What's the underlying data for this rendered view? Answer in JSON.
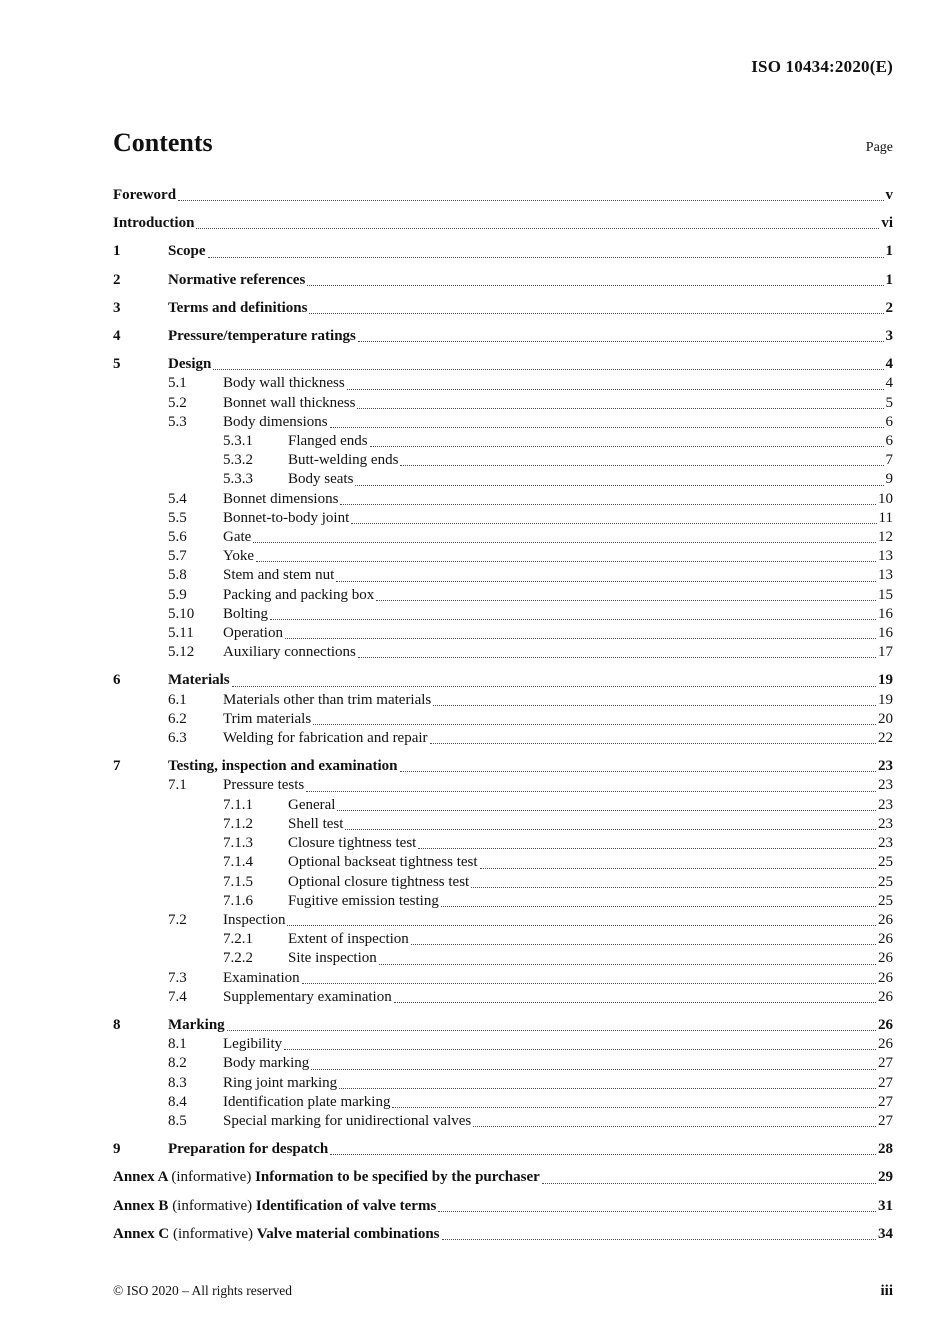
{
  "header": {
    "doc_code": "ISO 10434:2020(E)"
  },
  "title": "Contents",
  "page_column_label": "Page",
  "toc": {
    "entries": [
      {
        "level": 0,
        "bold": true,
        "label": "Foreword",
        "page": "v"
      },
      {
        "level": 0,
        "bold": true,
        "label": "Introduction",
        "page": "vi"
      },
      {
        "level": 1,
        "bold": true,
        "number": "1",
        "label": "Scope",
        "page": "1"
      },
      {
        "level": 1,
        "bold": true,
        "number": "2",
        "label": "Normative references",
        "page": "1"
      },
      {
        "level": 1,
        "bold": true,
        "number": "3",
        "label": "Terms and definitions",
        "page": "2"
      },
      {
        "level": 1,
        "bold": true,
        "number": "4",
        "label": "Pressure/temperature ratings",
        "page": "3"
      },
      {
        "level": 1,
        "bold": true,
        "number": "5",
        "label": "Design",
        "page": "4"
      },
      {
        "level": 2,
        "bold": false,
        "number": "5.1",
        "label": "Body wall thickness",
        "page": "4"
      },
      {
        "level": 2,
        "bold": false,
        "number": "5.2",
        "label": "Bonnet wall thickness",
        "page": "5"
      },
      {
        "level": 2,
        "bold": false,
        "number": "5.3",
        "label": "Body dimensions",
        "page": "6"
      },
      {
        "level": 3,
        "bold": false,
        "number": "5.3.1",
        "label": "Flanged ends",
        "page": "6"
      },
      {
        "level": 3,
        "bold": false,
        "number": "5.3.2",
        "label": "Butt-welding ends",
        "page": "7"
      },
      {
        "level": 3,
        "bold": false,
        "number": "5.3.3",
        "label": "Body seats",
        "page": "9"
      },
      {
        "level": 2,
        "bold": false,
        "number": "5.4",
        "label": "Bonnet dimensions",
        "page": "10"
      },
      {
        "level": 2,
        "bold": false,
        "number": "5.5",
        "label": "Bonnet-to-body joint",
        "page": "11"
      },
      {
        "level": 2,
        "bold": false,
        "number": "5.6",
        "label": "Gate",
        "page": "12"
      },
      {
        "level": 2,
        "bold": false,
        "number": "5.7",
        "label": "Yoke",
        "page": "13"
      },
      {
        "level": 2,
        "bold": false,
        "number": "5.8",
        "label": "Stem and stem nut",
        "page": "13"
      },
      {
        "level": 2,
        "bold": false,
        "number": "5.9",
        "label": "Packing and packing box",
        "page": "15"
      },
      {
        "level": 2,
        "bold": false,
        "number": "5.10",
        "label": "Bolting",
        "page": "16"
      },
      {
        "level": 2,
        "bold": false,
        "number": "5.11",
        "label": "Operation",
        "page": "16"
      },
      {
        "level": 2,
        "bold": false,
        "number": "5.12",
        "label": "Auxiliary connections",
        "page": "17"
      },
      {
        "level": 1,
        "bold": true,
        "number": "6",
        "label": "Materials",
        "page": "19"
      },
      {
        "level": 2,
        "bold": false,
        "number": "6.1",
        "label": "Materials other than trim materials",
        "page": "19"
      },
      {
        "level": 2,
        "bold": false,
        "number": "6.2",
        "label": "Trim materials",
        "page": "20"
      },
      {
        "level": 2,
        "bold": false,
        "number": "6.3",
        "label": "Welding for fabrication and repair",
        "page": "22"
      },
      {
        "level": 1,
        "bold": true,
        "number": "7",
        "label": "Testing, inspection and examination",
        "page": "23"
      },
      {
        "level": 2,
        "bold": false,
        "number": "7.1",
        "label": "Pressure tests",
        "page": "23"
      },
      {
        "level": 3,
        "bold": false,
        "number": "7.1.1",
        "label": "General",
        "page": "23"
      },
      {
        "level": 3,
        "bold": false,
        "number": "7.1.2",
        "label": "Shell test",
        "page": "23"
      },
      {
        "level": 3,
        "bold": false,
        "number": "7.1.3",
        "label": "Closure tightness test",
        "page": "23"
      },
      {
        "level": 3,
        "bold": false,
        "number": "7.1.4",
        "label": "Optional backseat tightness test",
        "page": "25"
      },
      {
        "level": 3,
        "bold": false,
        "number": "7.1.5",
        "label": "Optional closure tightness test",
        "page": "25"
      },
      {
        "level": 3,
        "bold": false,
        "number": "7.1.6",
        "label": "Fugitive emission testing",
        "page": "25"
      },
      {
        "level": 2,
        "bold": false,
        "number": "7.2",
        "label": "Inspection",
        "page": "26"
      },
      {
        "level": 3,
        "bold": false,
        "number": "7.2.1",
        "label": "Extent of inspection",
        "page": "26"
      },
      {
        "level": 3,
        "bold": false,
        "number": "7.2.2",
        "label": "Site inspection",
        "page": "26"
      },
      {
        "level": 2,
        "bold": false,
        "number": "7.3",
        "label": "Examination",
        "page": "26"
      },
      {
        "level": 2,
        "bold": false,
        "number": "7.4",
        "label": "Supplementary examination",
        "page": "26"
      },
      {
        "level": 1,
        "bold": true,
        "number": "8",
        "label": "Marking",
        "page": "26"
      },
      {
        "level": 2,
        "bold": false,
        "number": "8.1",
        "label": "Legibility",
        "page": "26"
      },
      {
        "level": 2,
        "bold": false,
        "number": "8.2",
        "label": "Body marking",
        "page": "27"
      },
      {
        "level": 2,
        "bold": false,
        "number": "8.3",
        "label": "Ring joint marking",
        "page": "27"
      },
      {
        "level": 2,
        "bold": false,
        "number": "8.4",
        "label": "Identification plate marking",
        "page": "27"
      },
      {
        "level": 2,
        "bold": false,
        "number": "8.5",
        "label": "Special marking for unidirectional valves",
        "page": "27"
      },
      {
        "level": 1,
        "bold": true,
        "number": "9",
        "label": "Preparation for despatch",
        "page": "28"
      },
      {
        "level": 0,
        "bold": true,
        "parts": [
          {
            "text": "Annex A ",
            "bold": true
          },
          {
            "text": "(informative) ",
            "bold": false
          },
          {
            "text": "Information to be specified by the purchaser",
            "bold": true
          }
        ],
        "page": "29"
      },
      {
        "level": 0,
        "bold": true,
        "parts": [
          {
            "text": "Annex B ",
            "bold": true
          },
          {
            "text": "(informative) ",
            "bold": false
          },
          {
            "text": "Identification of valve terms",
            "bold": true
          }
        ],
        "page": "31"
      },
      {
        "level": 0,
        "bold": true,
        "parts": [
          {
            "text": "Annex C ",
            "bold": true
          },
          {
            "text": "(informative) ",
            "bold": false
          },
          {
            "text": "Valve material combinations",
            "bold": true
          }
        ],
        "page": "34"
      }
    ]
  },
  "footer": {
    "copyright": "© ISO 2020 – All rights reserved",
    "page_number": "iii"
  }
}
